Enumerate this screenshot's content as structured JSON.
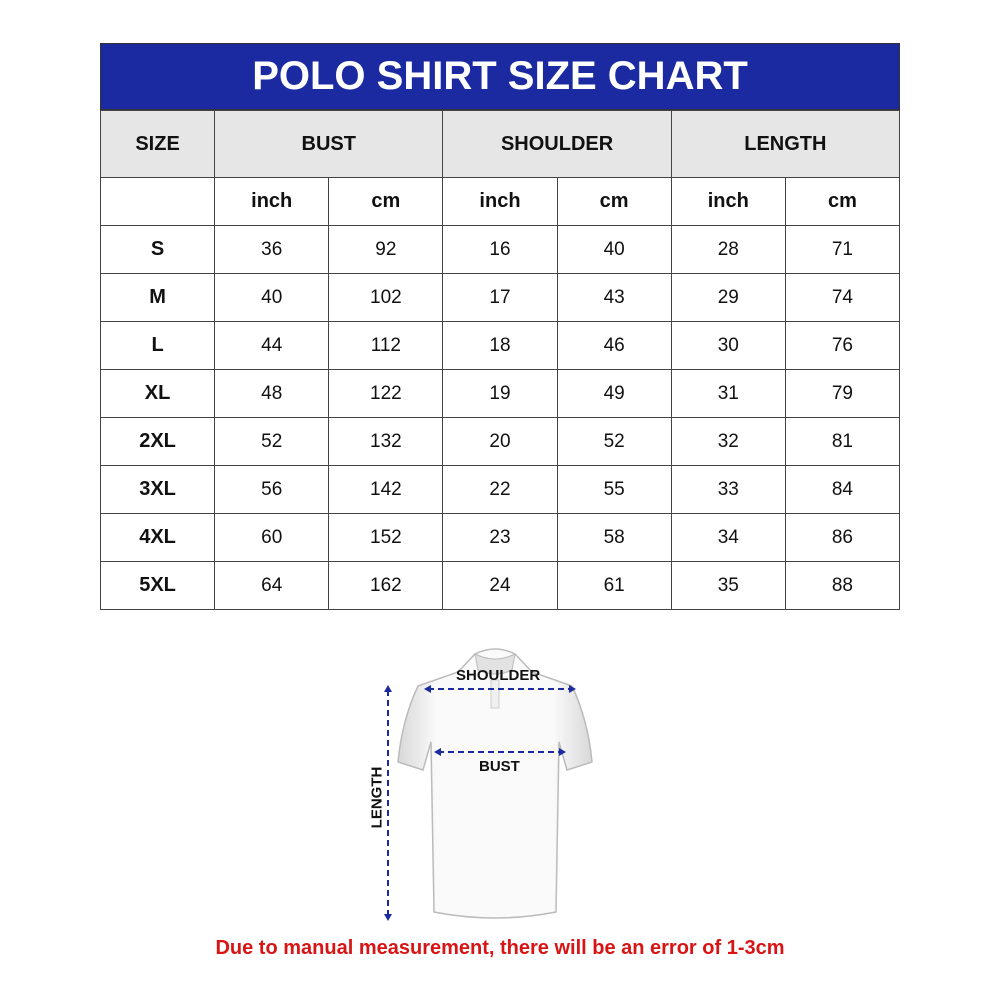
{
  "title": "POLO SHIRT SIZE CHART",
  "headers": [
    "SIZE",
    "BUST",
    "SHOULDER",
    "LENGTH"
  ],
  "units": [
    "inch",
    "cm",
    "inch",
    "cm",
    "inch",
    "cm"
  ],
  "rows": [
    {
      "size": "S",
      "values": [
        "36",
        "92",
        "16",
        "40",
        "28",
        "71"
      ]
    },
    {
      "size": "M",
      "values": [
        "40",
        "102",
        "17",
        "43",
        "29",
        "74"
      ]
    },
    {
      "size": "L",
      "values": [
        "44",
        "112",
        "18",
        "46",
        "30",
        "76"
      ]
    },
    {
      "size": "XL",
      "values": [
        "48",
        "122",
        "19",
        "49",
        "31",
        "79"
      ]
    },
    {
      "size": "2XL",
      "values": [
        "52",
        "132",
        "20",
        "52",
        "32",
        "81"
      ]
    },
    {
      "size": "3XL",
      "values": [
        "56",
        "142",
        "22",
        "55",
        "33",
        "84"
      ]
    },
    {
      "size": "4XL",
      "values": [
        "60",
        "152",
        "23",
        "58",
        "34",
        "86"
      ]
    },
    {
      "size": "5XL",
      "values": [
        "64",
        "162",
        "24",
        "61",
        "35",
        "88"
      ]
    }
  ],
  "diagram": {
    "shoulder": "SHOULDER",
    "bust": "BUST",
    "length": "LENGTH"
  },
  "note": "Due to manual measurement, there will be an error of 1-3cm",
  "colors": {
    "header_band": "#1b2aa0",
    "header_row": "#e6e6e6",
    "arrows": "#1b2aa0",
    "note": "#d81414"
  }
}
